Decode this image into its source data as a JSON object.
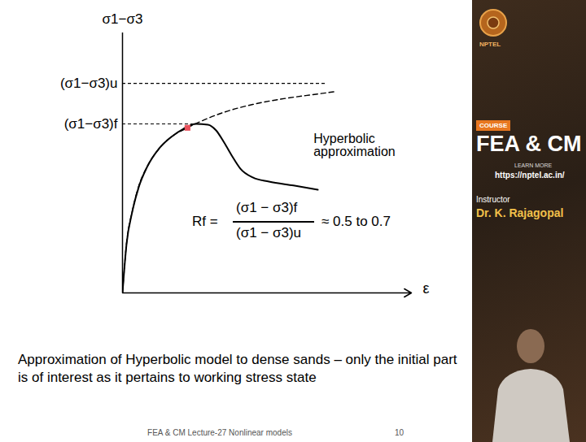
{
  "chart_data": {
    "type": "line",
    "y_label": "σ1−σ3",
    "x_label": "ε",
    "xlim": [
      0,
      100
    ],
    "ylim": [
      0,
      100
    ],
    "xticks": [],
    "yticks": [
      {
        "value": 65,
        "label": "(σ1−σ3)f"
      },
      {
        "value": 80.6,
        "label": "(σ1−σ3)u"
      }
    ],
    "tick_labels": "y",
    "grid": false,
    "dashed_levels": [
      {
        "value": 80.6,
        "x_end": 70.4
      },
      {
        "value": 65,
        "x_end": 25.4
      }
    ],
    "series": [
      {
        "color": "#000000",
        "line_style": "solid",
        "x": [
          0,
          1.4,
          3.4,
          5.6,
          8.5,
          12.7,
          16.9,
          21.1,
          25.4,
          29.6,
          32.4,
          35.2,
          38,
          40.8,
          45.1,
          50.7,
          59.2,
          67.6
        ],
        "values": [
          0,
          18.8,
          31.3,
          40.6,
          48.4,
          55.6,
          60,
          63.1,
          65,
          64.7,
          62.5,
          57.8,
          52.5,
          47.8,
          44.4,
          42.8,
          41.3,
          39.7
        ]
      },
      {
        "name": "Hyperbolic approximation",
        "color": "#000000",
        "line_style": "dashed",
        "x": [
          0,
          1.4,
          3.4,
          5.6,
          8.5,
          12.7,
          16.9,
          22.5,
          28.2,
          35.2,
          45.1,
          56.3,
          67.6,
          74
        ],
        "values": [
          0,
          19,
          31.5,
          41,
          48.5,
          55.5,
          60,
          63.5,
          66.5,
          69.5,
          72.5,
          74.8,
          76.5,
          77.5
        ]
      }
    ],
    "marker_point": {
      "x": 22.5,
      "y": 63.5,
      "color": "#e8505b",
      "marker": "square"
    },
    "formula": {
      "lhs": "Rf =",
      "numerator": "(σ1 − σ3)f",
      "denominator": "(σ1 − σ3)u",
      "approx": "≈ 0.5 to 0.7"
    },
    "caption": "Approximation of Hyperbolic model to dense sands – only the initial part is of interest as it pertains to working stress state"
  },
  "slide": {
    "footer": "FEA & CM Lecture-27 Nonlinear models",
    "page": 10,
    "sidebar": {
      "logo": "NPTEL",
      "badge": "COURSE",
      "course": "FEA & CM",
      "learn_more": "LEARN MORE",
      "url": "https://nptel.ac.in/",
      "instructor_label": "Instructor",
      "instructor": "Dr. K. Rajagopal"
    }
  }
}
